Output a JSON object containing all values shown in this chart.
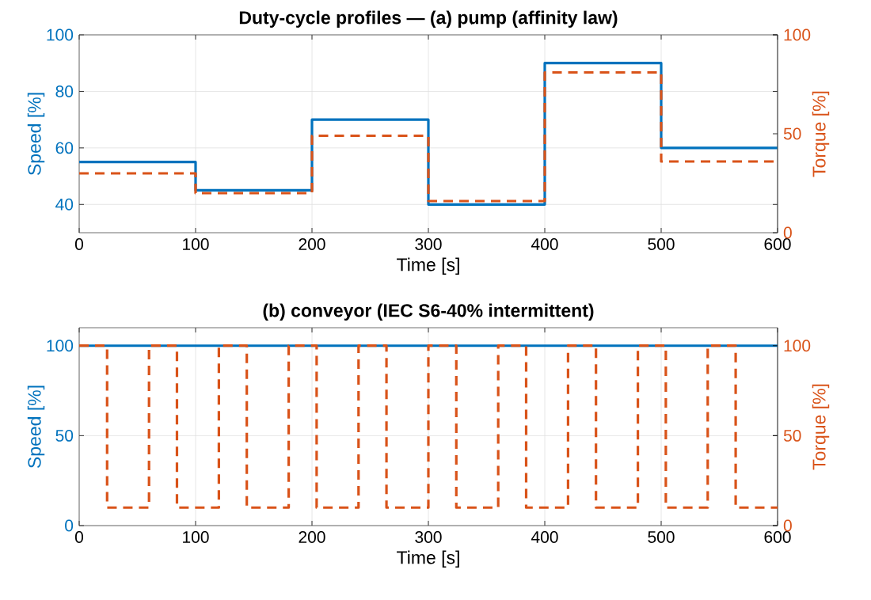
{
  "chart_data": [
    {
      "type": "step",
      "title": "Duty-cycle profiles — (a) pump (affinity law)",
      "xlabel": "Time [s]",
      "ylabel": "Speed [%]",
      "y2label": "Torque [%]",
      "xlim": [
        0,
        600
      ],
      "xticks": [
        0,
        100,
        200,
        300,
        400,
        500,
        600
      ],
      "ylim": [
        30,
        100
      ],
      "yticks": [
        40,
        60,
        80,
        100
      ],
      "y2lim": [
        0,
        100
      ],
      "y2ticks": [
        0,
        50,
        100
      ],
      "grid": true,
      "series": [
        {
          "color": "#0072bd",
          "line_style": "solid",
          "x": [
            0,
            100,
            200,
            300,
            400,
            500,
            600
          ],
          "values": [
            55,
            45,
            70,
            40,
            90,
            60,
            60
          ]
        },
        {
          "axis": "y2",
          "color": "#d95319",
          "line_style": "dashed",
          "x": [
            0,
            100,
            200,
            300,
            400,
            500,
            600
          ],
          "values": [
            30,
            20,
            49,
            16,
            81,
            36,
            36
          ]
        }
      ]
    },
    {
      "type": "step",
      "title": "(b) conveyor (IEC S6-40% intermittent)",
      "xlabel": "Time [s]",
      "ylabel": "Speed [%]",
      "y2label": "Torque [%]",
      "xlim": [
        0,
        600
      ],
      "xticks": [
        0,
        100,
        200,
        300,
        400,
        500,
        600
      ],
      "ylim": [
        0,
        110
      ],
      "yticks": [
        0,
        50,
        100
      ],
      "y2lim": [
        0,
        110
      ],
      "y2ticks": [
        0,
        50,
        100
      ],
      "grid": true,
      "series": [
        {
          "type": "line",
          "color": "#0072bd",
          "line_style": "solid",
          "x": [
            0,
            600
          ],
          "values": [
            100,
            100
          ]
        },
        {
          "axis": "y2",
          "color": "#d95319",
          "line_style": "dashed",
          "x": [
            0,
            24,
            60,
            84,
            120,
            144,
            180,
            204,
            240,
            264,
            300,
            324,
            360,
            384,
            420,
            444,
            480,
            504,
            540,
            564,
            600
          ],
          "values": [
            100,
            10,
            100,
            10,
            100,
            10,
            100,
            10,
            100,
            10,
            100,
            10,
            100,
            10,
            100,
            10,
            100,
            10,
            100,
            10,
            10
          ]
        }
      ]
    }
  ]
}
